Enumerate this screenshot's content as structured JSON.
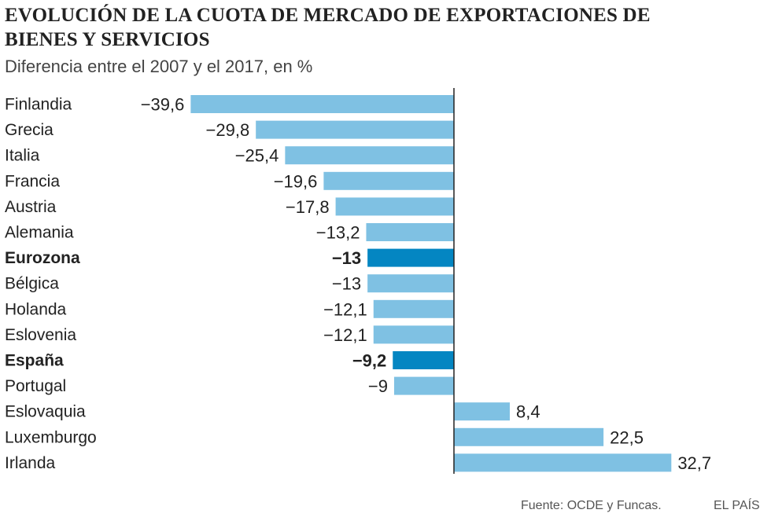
{
  "title": "EVOLUCIÓN DE LA CUOTA DE MERCADO DE EXPORTACIONES DE BIENES Y SERVICIOS",
  "subtitle": "Diferencia entre el 2007 y el 2017, en %",
  "source": "Fuente: OCDE y Funcas.",
  "brand": "EL PAÍS",
  "colors": {
    "bar": "#7fc1e3",
    "highlight": "#0486c2",
    "axis": "#222222"
  },
  "chart_data": {
    "type": "bar",
    "orientation": "horizontal",
    "title": "EVOLUCIÓN DE LA CUOTA DE MERCADO DE EXPORTACIONES DE BIENES Y SERVICIOS",
    "subtitle": "Diferencia entre el 2007 y el 2017, en %",
    "xlabel": "",
    "ylabel": "",
    "xlim": [
      -40,
      40
    ],
    "grid": false,
    "categories": [
      "Finlandia",
      "Grecia",
      "Italia",
      "Francia",
      "Austria",
      "Alemania",
      "Eurozona",
      "Bélgica",
      "Holanda",
      "Eslovenia",
      "España",
      "Portugal",
      "Eslovaquia",
      "Luxemburgo",
      "Irlanda"
    ],
    "values": [
      -39.6,
      -29.8,
      -25.4,
      -19.6,
      -17.8,
      -13.2,
      -13,
      -13,
      -12.1,
      -12.1,
      -9.2,
      -9,
      8.4,
      22.5,
      32.7
    ],
    "value_labels": [
      "−39,6",
      "−29,8",
      "−25,4",
      "−19,6",
      "−17,8",
      "−13,2",
      "−13",
      "−13",
      "−12,1",
      "−12,1",
      "−9,2",
      "−9",
      "8,4",
      "22,5",
      "32,7"
    ],
    "highlighted": [
      "Eurozona",
      "España"
    ]
  }
}
